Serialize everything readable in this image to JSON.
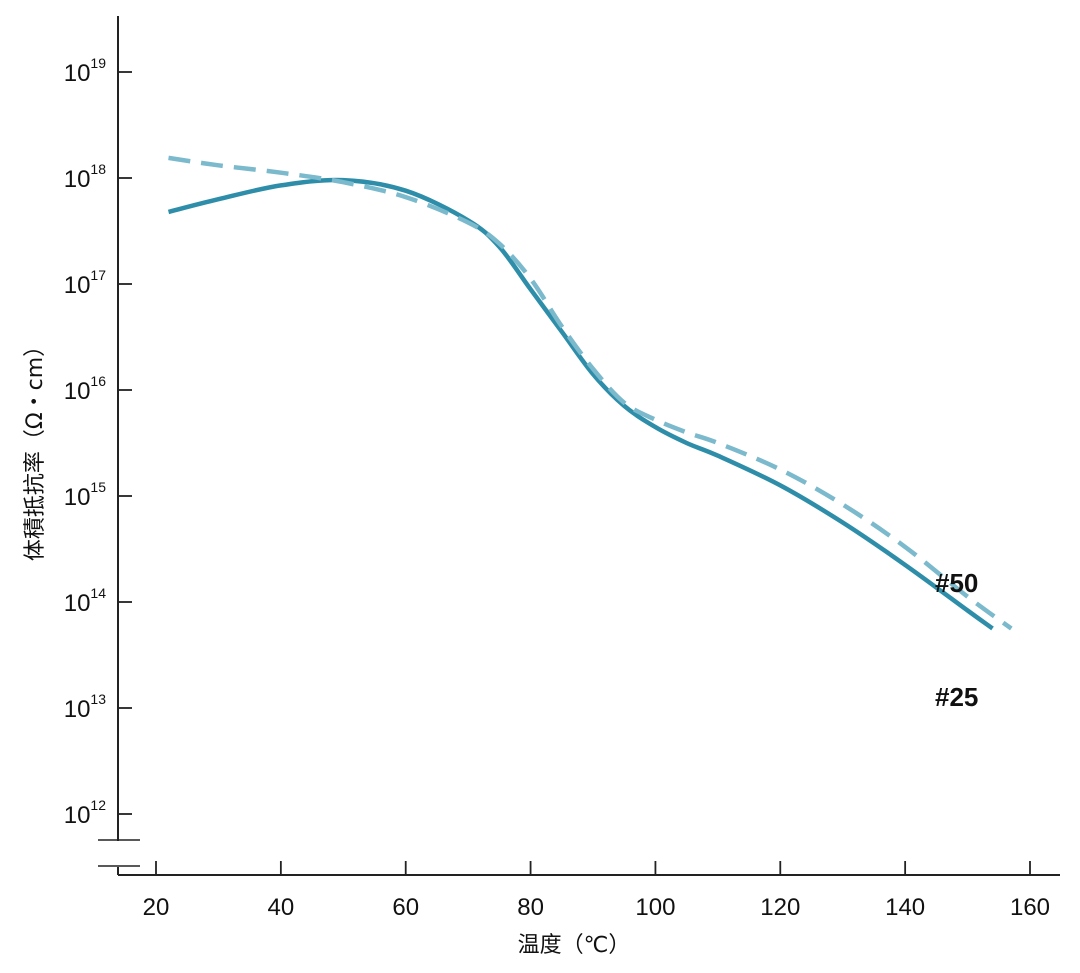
{
  "chart_data": {
    "type": "line",
    "title": "",
    "xlabel": "温度（℃）",
    "ylabel": "体積抵抗率（Ω・cm）",
    "xlim": [
      15,
      165
    ],
    "ylim": [
      12,
      19.6
    ],
    "y_scale": "log",
    "grid": false,
    "legend": "none",
    "x_ticks": [
      20,
      40,
      60,
      80,
      100,
      120,
      140,
      160
    ],
    "y_ticks": [
      {
        "base": "10",
        "exp": "19",
        "log": 19
      },
      {
        "base": "10",
        "exp": "18",
        "log": 18
      },
      {
        "base": "10",
        "exp": "17",
        "log": 17
      },
      {
        "base": "10",
        "exp": "16",
        "log": 16
      },
      {
        "base": "10",
        "exp": "15",
        "log": 15
      },
      {
        "base": "10",
        "exp": "14",
        "log": 14
      },
      {
        "base": "10",
        "exp": "13",
        "log": 13
      },
      {
        "base": "10",
        "exp": "12",
        "log": 12
      }
    ],
    "axis_break": true,
    "series": [
      {
        "name": "#25",
        "style": "solid",
        "color": "#2e8ea9",
        "x": [
          22,
          30,
          40,
          50,
          60,
          70,
          75,
          80,
          85,
          90,
          95,
          100,
          105,
          110,
          120,
          130,
          140,
          150,
          154
        ],
        "y_log": [
          17.68,
          17.8,
          17.93,
          17.98,
          17.88,
          17.6,
          17.35,
          16.95,
          16.55,
          16.15,
          15.85,
          15.65,
          15.5,
          15.38,
          15.1,
          14.75,
          14.35,
          13.92,
          13.75
        ]
      },
      {
        "name": "#50",
        "style": "dashed",
        "color": "#7bb9cc",
        "x": [
          22,
          30,
          40,
          50,
          60,
          70,
          75,
          80,
          85,
          90,
          95,
          100,
          105,
          110,
          120,
          130,
          140,
          150,
          157
        ],
        "y_log": [
          18.19,
          18.12,
          18.05,
          17.96,
          17.82,
          17.58,
          17.38,
          17.05,
          16.6,
          16.2,
          15.88,
          15.72,
          15.6,
          15.5,
          15.25,
          14.92,
          14.52,
          14.05,
          13.75
        ]
      }
    ]
  }
}
